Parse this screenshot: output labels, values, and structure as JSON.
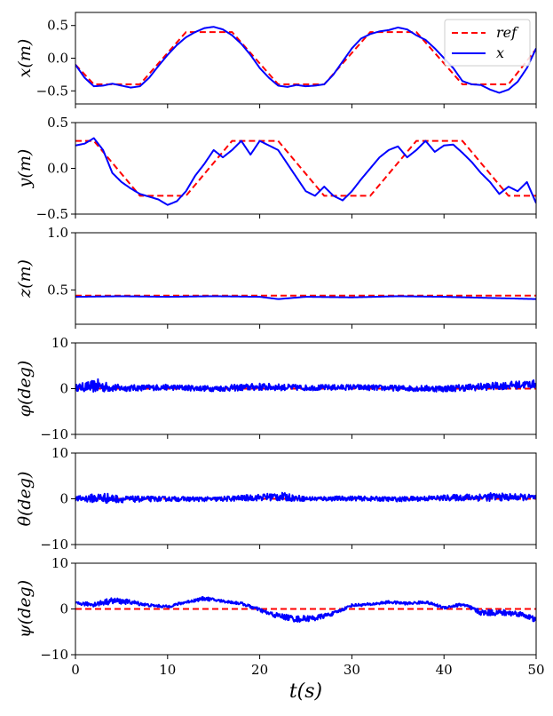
{
  "chart_data": {
    "type": "line",
    "xlabel": "t(s)",
    "xlim": [
      0,
      50
    ],
    "xticks": [
      0,
      10,
      20,
      30,
      40,
      50
    ],
    "xtick_labels": [
      "0",
      "10",
      "20",
      "30",
      "40",
      "50"
    ],
    "legend": {
      "placement": "top-right",
      "entries": [
        "ref",
        "x"
      ]
    },
    "colors": {
      "ref": "#ff0000",
      "actual": "#0000ff",
      "axis": "#000000"
    },
    "subplots": [
      {
        "id": "x",
        "ylabel": "x(m)",
        "ylim": [
          -0.7,
          0.7
        ],
        "yticks": [
          -0.5,
          0.0,
          0.5
        ],
        "ytick_labels": [
          "−0.5",
          "0.0",
          "0.5"
        ],
        "ref": {
          "x": [
            0,
            2,
            7,
            12,
            17,
            22,
            27,
            32,
            37,
            42,
            47,
            50
          ],
          "y": [
            -0.1,
            -0.4,
            -0.4,
            0.4,
            0.4,
            -0.4,
            -0.4,
            0.4,
            0.4,
            -0.4,
            -0.4,
            0.14
          ]
        },
        "actual": {
          "x": [
            0,
            1,
            2,
            3,
            4,
            5,
            6,
            7,
            8,
            9,
            10,
            11,
            12,
            13,
            14,
            15,
            16,
            17,
            18,
            19,
            20,
            21,
            22,
            23,
            24,
            25,
            26,
            27,
            28,
            29,
            30,
            31,
            32,
            33,
            34,
            35,
            36,
            37,
            38,
            39,
            40,
            41,
            42,
            43,
            44,
            45,
            46,
            47,
            48,
            49,
            50
          ],
          "y": [
            -0.1,
            -0.3,
            -0.43,
            -0.42,
            -0.39,
            -0.42,
            -0.45,
            -0.43,
            -0.3,
            -0.12,
            0.05,
            0.2,
            0.32,
            0.4,
            0.46,
            0.48,
            0.44,
            0.35,
            0.22,
            0.05,
            -0.15,
            -0.3,
            -0.42,
            -0.44,
            -0.41,
            -0.43,
            -0.42,
            -0.4,
            -0.25,
            -0.05,
            0.15,
            0.3,
            0.37,
            0.41,
            0.43,
            0.47,
            0.44,
            0.35,
            0.28,
            0.15,
            0.0,
            -0.15,
            -0.35,
            -0.4,
            -0.41,
            -0.48,
            -0.53,
            -0.48,
            -0.36,
            -0.15,
            0.15
          ]
        }
      },
      {
        "id": "y",
        "ylabel": "y(m)",
        "ylim": [
          -0.5,
          0.5
        ],
        "yticks": [
          -0.5,
          0.0,
          0.5
        ],
        "ytick_labels": [
          "−0.5",
          "0.0",
          "0.5"
        ],
        "ref": {
          "x": [
            0,
            2,
            7,
            12,
            17,
            22,
            27,
            32,
            37,
            42,
            47,
            50
          ],
          "y": [
            0.3,
            0.3,
            -0.3,
            -0.3,
            0.3,
            0.3,
            -0.3,
            -0.3,
            0.3,
            0.3,
            -0.3,
            -0.3
          ]
        },
        "actual": {
          "x": [
            0,
            1,
            2,
            3,
            4,
            5,
            6,
            7,
            8,
            9,
            10,
            11,
            12,
            13,
            14,
            15,
            16,
            17,
            18,
            19,
            20,
            21,
            22,
            23,
            24,
            25,
            26,
            27,
            28,
            29,
            30,
            31,
            32,
            33,
            34,
            35,
            36,
            37,
            38,
            39,
            40,
            41,
            42,
            43,
            44,
            45,
            46,
            47,
            48,
            49,
            50
          ],
          "y": [
            0.25,
            0.27,
            0.33,
            0.2,
            -0.05,
            -0.15,
            -0.22,
            -0.28,
            -0.31,
            -0.34,
            -0.4,
            -0.36,
            -0.25,
            -0.08,
            0.05,
            0.2,
            0.12,
            0.2,
            0.3,
            0.15,
            0.3,
            0.25,
            0.2,
            0.05,
            -0.1,
            -0.25,
            -0.3,
            -0.2,
            -0.3,
            -0.35,
            -0.25,
            -0.12,
            0.0,
            0.12,
            0.2,
            0.24,
            0.12,
            0.2,
            0.3,
            0.18,
            0.25,
            0.26,
            0.17,
            0.07,
            -0.05,
            -0.15,
            -0.28,
            -0.2,
            -0.25,
            -0.15,
            -0.38
          ]
        }
      },
      {
        "id": "z",
        "ylabel": "z(m)",
        "ylim": [
          0.2,
          1.0
        ],
        "yticks": [
          0.5,
          1.0
        ],
        "ytick_labels": [
          "0.5",
          "1.0"
        ],
        "ref": {
          "x": [
            0,
            50
          ],
          "y": [
            0.45,
            0.45
          ]
        },
        "actual": {
          "x": [
            0,
            5,
            10,
            15,
            20,
            22,
            25,
            30,
            35,
            40,
            45,
            50
          ],
          "y": [
            0.44,
            0.445,
            0.44,
            0.445,
            0.44,
            0.42,
            0.44,
            0.435,
            0.445,
            0.44,
            0.43,
            0.42
          ]
        }
      },
      {
        "id": "phi",
        "ylabel": "φ(deg)",
        "ylim": [
          -10,
          10
        ],
        "yticks": [
          -10,
          0,
          10
        ],
        "ytick_labels": [
          "−10",
          "0",
          "10"
        ],
        "ref": {
          "x": [
            0,
            50
          ],
          "y": [
            0,
            0
          ]
        },
        "actual": {
          "x": [
            0,
            2.5,
            3.5,
            5,
            10,
            15,
            20,
            25,
            30,
            35,
            40,
            45,
            50
          ],
          "y": [
            0.2,
            0.6,
            0.3,
            0.1,
            0.3,
            0.0,
            0.4,
            0.2,
            0.3,
            0.1,
            0.0,
            0.5,
            1.0
          ],
          "noise": [
            0.7,
            1.5,
            1.0,
            0.7,
            0.6,
            0.6,
            0.8,
            0.6,
            0.6,
            0.6,
            0.7,
            0.8,
            0.9
          ]
        }
      },
      {
        "id": "theta",
        "ylabel": "θ(deg)",
        "ylim": [
          -10,
          10
        ],
        "yticks": [
          -10,
          0,
          10
        ],
        "ytick_labels": [
          "−10",
          "0",
          "10"
        ],
        "ref": {
          "x": [
            0,
            50
          ],
          "y": [
            0,
            0
          ]
        },
        "actual": {
          "x": [
            0,
            3,
            5,
            10,
            15,
            20,
            22,
            25,
            30,
            35,
            40,
            45,
            50
          ],
          "y": [
            0.0,
            0.2,
            -0.1,
            0.0,
            -0.1,
            0.3,
            0.5,
            0.0,
            0.1,
            -0.1,
            0.2,
            0.4,
            0.3
          ],
          "noise": [
            0.5,
            1.2,
            0.7,
            0.5,
            0.5,
            0.7,
            1.0,
            0.5,
            0.5,
            0.5,
            0.6,
            0.9,
            0.6
          ]
        }
      },
      {
        "id": "psi",
        "ylabel": "ψ(deg)",
        "ylim": [
          -10,
          10
        ],
        "yticks": [
          -10,
          0,
          10
        ],
        "ytick_labels": [
          "−10",
          "0",
          "10"
        ],
        "ref": {
          "x": [
            0,
            50
          ],
          "y": [
            0,
            0
          ]
        },
        "actual": {
          "x": [
            0,
            2,
            4,
            6,
            8,
            10,
            12,
            14,
            16,
            18,
            20,
            21,
            22,
            24,
            26,
            28,
            30,
            32,
            34,
            36,
            38,
            40,
            42,
            44,
            46,
            48,
            49,
            50
          ],
          "y": [
            1.2,
            1.0,
            1.8,
            1.5,
            0.8,
            0.5,
            1.5,
            2.3,
            1.7,
            1.2,
            -0.2,
            -1.0,
            -1.5,
            -2.2,
            -2.0,
            -1.0,
            0.8,
            1.0,
            1.5,
            1.2,
            1.5,
            0.3,
            1.0,
            -0.8,
            -0.8,
            -1.0,
            -1.5,
            -2.5
          ],
          "noise": [
            0.3,
            0.5,
            0.7,
            0.5,
            0.3,
            0.3,
            0.3,
            0.4,
            0.3,
            0.3,
            0.4,
            0.5,
            0.6,
            0.7,
            0.6,
            0.4,
            0.3,
            0.3,
            0.3,
            0.3,
            0.3,
            0.3,
            0.4,
            0.6,
            0.7,
            0.6,
            0.6,
            0.6
          ]
        }
      }
    ]
  }
}
